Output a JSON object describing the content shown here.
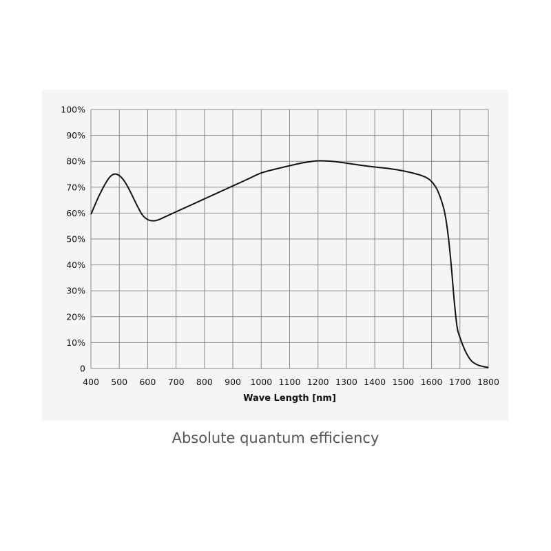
{
  "caption": "Absolute quantum efficiency",
  "colors": {
    "line": "#111111",
    "grid": "#8a8a8a",
    "panel": "#f5f5f5"
  },
  "chart_data": {
    "type": "line",
    "title": "",
    "xlabel": "Wave Length [nm]",
    "ylabel": "",
    "xlim": [
      400,
      1800
    ],
    "ylim": [
      0,
      100
    ],
    "grid": true,
    "x_ticks": [
      400,
      500,
      600,
      700,
      800,
      900,
      1000,
      1100,
      1200,
      1300,
      1400,
      1500,
      1600,
      1700,
      1800
    ],
    "y_ticks": [
      0,
      10,
      20,
      30,
      40,
      50,
      60,
      70,
      80,
      90,
      100
    ],
    "x_tick_labels": [
      "400",
      "500",
      "600",
      "700",
      "800",
      "900",
      "1000",
      "1100",
      "1200",
      "1300",
      "1400",
      "1500",
      "1600",
      "1700",
      "1800"
    ],
    "y_tick_labels": [
      "0",
      "10%",
      "20%",
      "30%",
      "40%",
      "50%",
      "60%",
      "70%",
      "80%",
      "90%",
      "100%"
    ],
    "series": [
      {
        "x": [
          400,
          430,
          460,
          480,
          500,
          520,
          540,
          560,
          580,
          600,
          620,
          640,
          660,
          700,
          750,
          800,
          850,
          900,
          950,
          1000,
          1050,
          1100,
          1150,
          1200,
          1250,
          1300,
          1350,
          1400,
          1450,
          1500,
          1550,
          1580,
          1600,
          1620,
          1640,
          1650,
          1660,
          1670,
          1680,
          1690,
          1700,
          1720,
          1740,
          1760,
          1780,
          1800
        ],
        "y": [
          59.5,
          67,
          73,
          75,
          74.5,
          72,
          68,
          63.5,
          59.5,
          57.5,
          57,
          57.5,
          58.5,
          60.5,
          63,
          65.5,
          68,
          70.5,
          73,
          75.5,
          77,
          78.3,
          79.5,
          80.2,
          80,
          79.3,
          78.5,
          77.8,
          77.2,
          76.3,
          75,
          73.8,
          72.2,
          69,
          63,
          58,
          50,
          39,
          26,
          16,
          12,
          6.5,
          3,
          1.5,
          0.8,
          0.4
        ]
      }
    ]
  }
}
